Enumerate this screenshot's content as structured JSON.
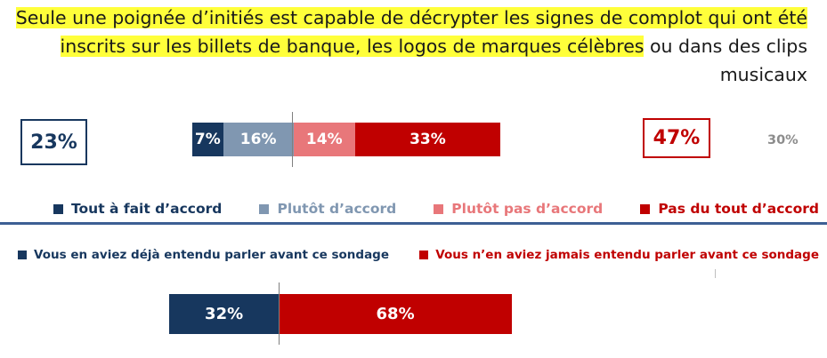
{
  "question": {
    "highlighted": "Seule une poignée d’initiés est capable de décrypter les signes de complot qui ont été inscrits sur les billets de banque, les logos de marques célèbres",
    "rest": " ou dans des clips musicaux"
  },
  "chart_data": [
    {
      "type": "bar",
      "orientation": "horizontal-stacked-diverging",
      "series": [
        {
          "name": "Tout à fait d’accord",
          "values": [
            7
          ],
          "label": "7%",
          "color": "#17375e"
        },
        {
          "name": "Plutôt d’accord",
          "values": [
            16
          ],
          "label": "16%",
          "color": "#8097b1"
        },
        {
          "name": "Plutôt pas d’accord",
          "values": [
            14
          ],
          "label": "14%",
          "color": "#e8777a"
        },
        {
          "name": "Pas du tout d’accord",
          "values": [
            33
          ],
          "label": "33%",
          "color": "#c00000"
        }
      ],
      "totals": {
        "agree": {
          "value": 23,
          "label": "23%",
          "color": "#17375e"
        },
        "disagree": {
          "value": 47,
          "label": "47%",
          "color": "#c00000"
        },
        "other": {
          "value": 30,
          "label": "30%",
          "color": "#8c8c8c"
        }
      },
      "legend": "bottom"
    },
    {
      "type": "bar",
      "orientation": "horizontal-stacked",
      "series": [
        {
          "name": "Vous en aviez déjà entendu parler avant ce sondage",
          "values": [
            32
          ],
          "label": "32%",
          "color": "#17375e"
        },
        {
          "name": "Vous n’en aviez jamais entendu parler avant ce sondage",
          "values": [
            68
          ],
          "label": "68%",
          "color": "#c00000"
        }
      ],
      "legend": "top"
    }
  ]
}
